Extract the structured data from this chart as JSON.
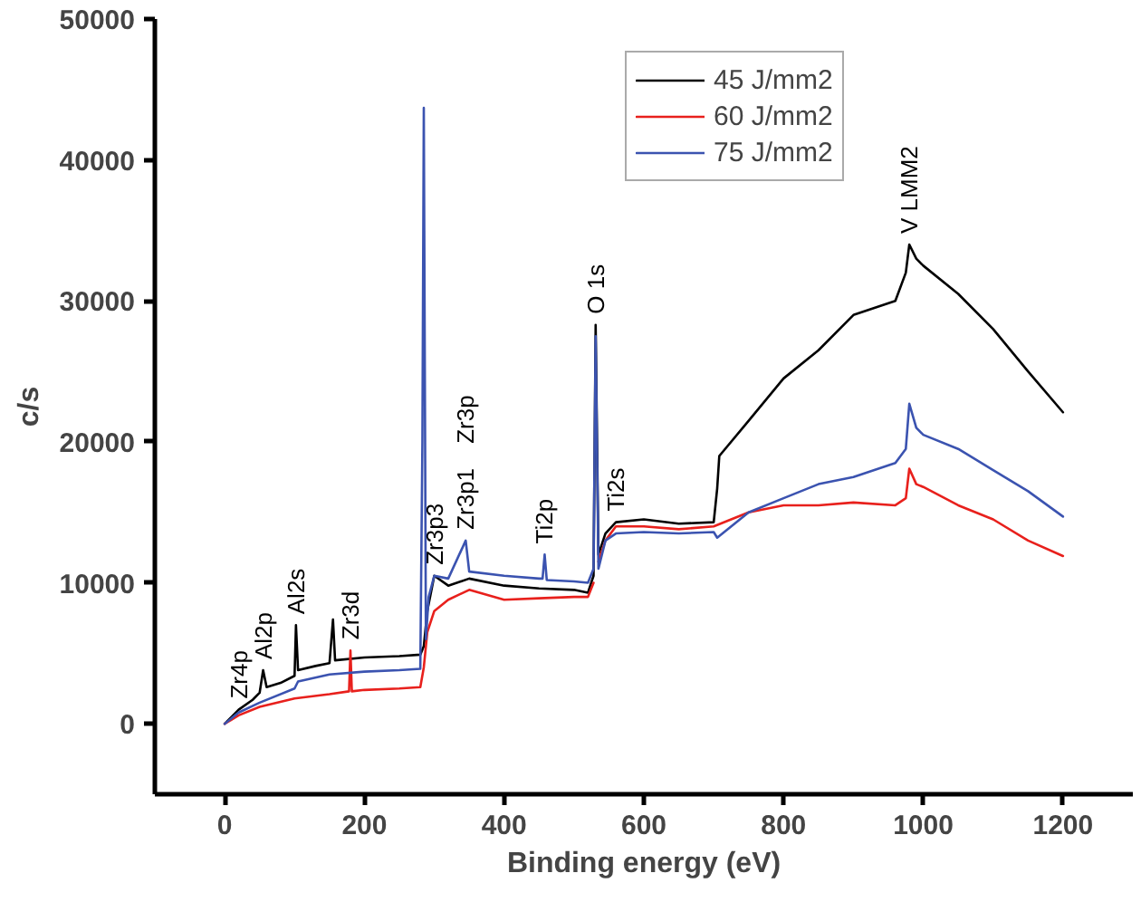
{
  "chart_data": {
    "type": "line",
    "xlabel": "Binding energy (eV)",
    "ylabel": "c/s",
    "xlim": [
      -100,
      1300
    ],
    "xticks": [
      0,
      200,
      400,
      600,
      800,
      1000,
      1200
    ],
    "ylim": [
      -5000,
      50000
    ],
    "yticks": [
      0,
      10000,
      20000,
      30000,
      40000,
      50000
    ],
    "grid": false,
    "legend": "top right",
    "marker": "none",
    "line_style": "solid",
    "series": [
      {
        "name": "45 J/mm2",
        "color": "#000000",
        "x": [
          0,
          20,
          40,
          50,
          55,
          60,
          80,
          100,
          102,
          105,
          130,
          150,
          155,
          158,
          200,
          250,
          280,
          285,
          290,
          300,
          320,
          350,
          400,
          450,
          500,
          520,
          528,
          531,
          535,
          545,
          560,
          600,
          650,
          700,
          705,
          708,
          750,
          800,
          850,
          900,
          960,
          975,
          980,
          990,
          1000,
          1050,
          1100,
          1150,
          1200
        ],
        "values": [
          0,
          1000,
          1700,
          2200,
          3800,
          2600,
          2900,
          3400,
          7000,
          3800,
          4100,
          4300,
          7400,
          4500,
          4700,
          4800,
          4900,
          5500,
          8000,
          10500,
          9800,
          10300,
          9800,
          9600,
          9500,
          9300,
          10500,
          28300,
          12000,
          13500,
          14300,
          14500,
          14200,
          14300,
          16700,
          19000,
          21500,
          24500,
          26500,
          29000,
          30000,
          32000,
          34000,
          33000,
          32500,
          30500,
          28000,
          25000,
          22100
        ]
      },
      {
        "name": "60 J/mm2",
        "color": "#e8201c",
        "x": [
          0,
          20,
          50,
          100,
          150,
          178,
          180,
          182,
          200,
          250,
          280,
          285,
          290,
          300,
          320,
          350,
          400,
          450,
          500,
          520,
          528,
          531,
          535,
          545,
          560,
          600,
          650,
          700,
          750,
          800,
          850,
          900,
          960,
          975,
          980,
          990,
          1000,
          1050,
          1100,
          1150,
          1200
        ],
        "values": [
          0,
          600,
          1200,
          1800,
          2100,
          2300,
          5200,
          2300,
          2400,
          2500,
          2600,
          4000,
          6500,
          8000,
          8800,
          9500,
          8800,
          8900,
          9000,
          9000,
          10000,
          null,
          11500,
          13000,
          14000,
          14000,
          13800,
          14000,
          15000,
          15500,
          15500,
          15700,
          15500,
          16000,
          18100,
          17000,
          16800,
          15500,
          14500,
          13000,
          11900
        ]
      },
      {
        "name": "75 J/mm2",
        "color": "#3b53b0",
        "x": [
          0,
          20,
          50,
          100,
          105,
          150,
          200,
          250,
          280,
          283,
          285,
          288,
          292,
          300,
          320,
          345,
          350,
          400,
          450,
          455,
          458,
          461,
          500,
          520,
          528,
          531,
          535,
          545,
          560,
          600,
          650,
          700,
          705,
          750,
          800,
          850,
          900,
          960,
          975,
          980,
          990,
          1000,
          1050,
          1100,
          1150,
          1200
        ],
        "values": [
          0,
          800,
          1500,
          2500,
          3000,
          3500,
          3700,
          3800,
          3900,
          20000,
          43700,
          6000,
          9000,
          10500,
          10300,
          13000,
          10800,
          10500,
          10300,
          10300,
          12000,
          10200,
          10100,
          10000,
          11000,
          27500,
          11000,
          13000,
          13500,
          13600,
          13500,
          13600,
          13200,
          15000,
          16000,
          17000,
          17500,
          18500,
          19500,
          22700,
          21000,
          20500,
          19500,
          18000,
          16500,
          14700
        ]
      }
    ],
    "annotations": [
      {
        "text": "Zr4p",
        "x": 20,
        "y": 1000
      },
      {
        "text": "Al2p",
        "x": 55,
        "y": 3800
      },
      {
        "text": "Al2s",
        "x": 102,
        "y": 7000
      },
      {
        "text": "Zr3d",
        "x": 180,
        "y": 5200
      },
      {
        "text": "Zr3p3",
        "x": 300,
        "y": 10500
      },
      {
        "text": "Zr3p1",
        "x": 345,
        "y": 13000
      },
      "Zr3p",
      {
        "text": "Ti2p",
        "x": 458,
        "y": 12000
      },
      {
        "text": "Ti2s",
        "x": 560,
        "y": 14300
      },
      {
        "text": "O 1s",
        "x": 531,
        "y": 28300
      },
      {
        "text": "V LMM2",
        "x": 980,
        "y": 34000
      }
    ]
  }
}
